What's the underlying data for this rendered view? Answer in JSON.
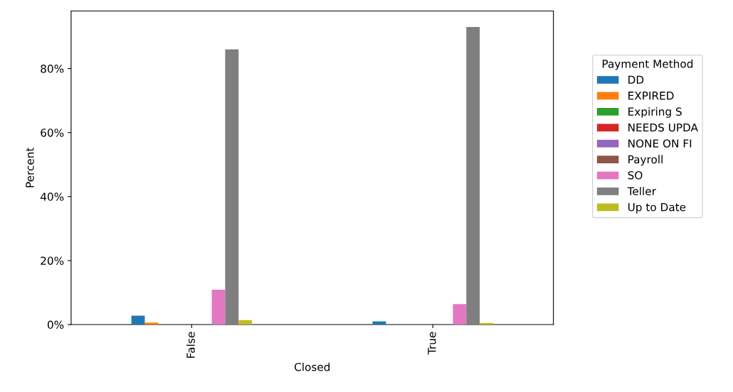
{
  "chart_data": {
    "type": "bar",
    "xlabel": "Closed",
    "ylabel": "Percent",
    "legend_title": "Payment Method",
    "legend": "right",
    "categories": [
      "False",
      "True"
    ],
    "series": [
      {
        "name": "DD",
        "color": "#1f77b4",
        "values": [
          2.8,
          1.0
        ]
      },
      {
        "name": "EXPIRED",
        "color": "#ff7f0e",
        "values": [
          0.6,
          0
        ]
      },
      {
        "name": "Expiring S",
        "color": "#2ca02c",
        "values": [
          0,
          0
        ]
      },
      {
        "name": "NEEDS UPDA",
        "color": "#d62728",
        "values": [
          0,
          0
        ]
      },
      {
        "name": "NONE ON FI",
        "color": "#9467bd",
        "values": [
          0,
          0
        ]
      },
      {
        "name": "Payroll",
        "color": "#8c564b",
        "values": [
          0,
          0
        ]
      },
      {
        "name": "SO",
        "color": "#e377c2",
        "values": [
          10.9,
          6.4
        ]
      },
      {
        "name": "Teller",
        "color": "#7f7f7f",
        "values": [
          86,
          93
        ]
      },
      {
        "name": "Up to Date",
        "color": "#bcbd22",
        "values": [
          1.4,
          0.5
        ]
      }
    ],
    "ylim": [
      0,
      98
    ],
    "yticks": [
      {
        "value": 0,
        "label": "0%"
      },
      {
        "value": 20,
        "label": "20%"
      },
      {
        "value": 40,
        "label": "40%"
      },
      {
        "value": 60,
        "label": "60%"
      },
      {
        "value": 80,
        "label": "80%"
      }
    ],
    "grid": false
  }
}
